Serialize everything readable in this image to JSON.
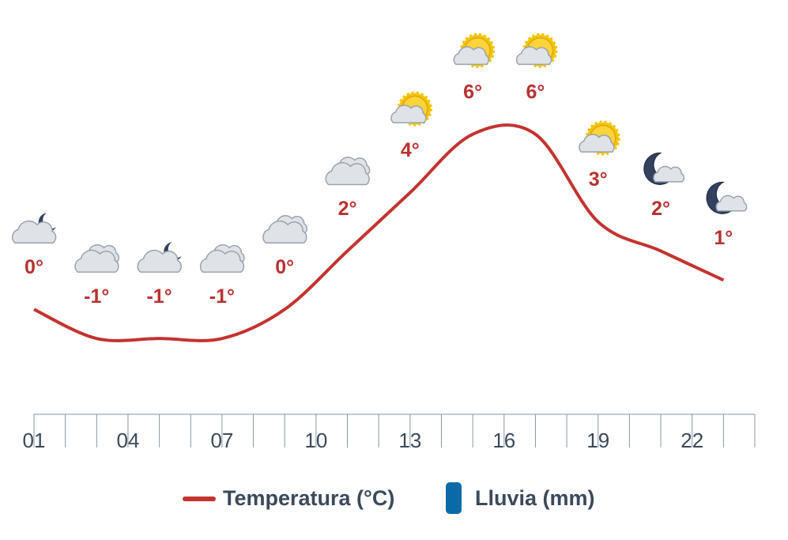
{
  "chart_data": {
    "type": "line",
    "x": [
      1,
      3,
      5,
      7,
      9,
      11,
      13,
      15,
      17,
      19,
      21,
      23
    ],
    "series": [
      {
        "name": "Temperatura (°C)",
        "color": "#c4332f",
        "values": [
          0,
          -1,
          -1,
          -1,
          0,
          2,
          4,
          6,
          6,
          3,
          2,
          1
        ],
        "value_labels": [
          "0°",
          "-1°",
          "-1°",
          "-1°",
          "0°",
          "2°",
          "4°",
          "6°",
          "6°",
          "3°",
          "2°",
          "1°"
        ]
      },
      {
        "name": "Lluvia (mm)",
        "color": "#0a6aa8",
        "kind": "bar",
        "values": [
          0,
          0,
          0,
          0,
          0,
          0,
          0,
          0,
          0,
          0,
          0,
          0
        ]
      }
    ],
    "xlim": [
      1,
      24
    ],
    "xticks": [
      {
        "value": 1,
        "label": "01"
      },
      {
        "value": 4,
        "label": "04"
      },
      {
        "value": 7,
        "label": "07"
      },
      {
        "value": 10,
        "label": "10"
      },
      {
        "value": 13,
        "label": "13"
      },
      {
        "value": 16,
        "label": "16"
      },
      {
        "value": 19,
        "label": "19"
      },
      {
        "value": 22,
        "label": "22"
      }
    ],
    "xminor_ticks": [
      2,
      3,
      5,
      6,
      8,
      9,
      11,
      12,
      14,
      15,
      17,
      18,
      20,
      21,
      23,
      24
    ],
    "ylim": [
      -3,
      8
    ]
  }
}
